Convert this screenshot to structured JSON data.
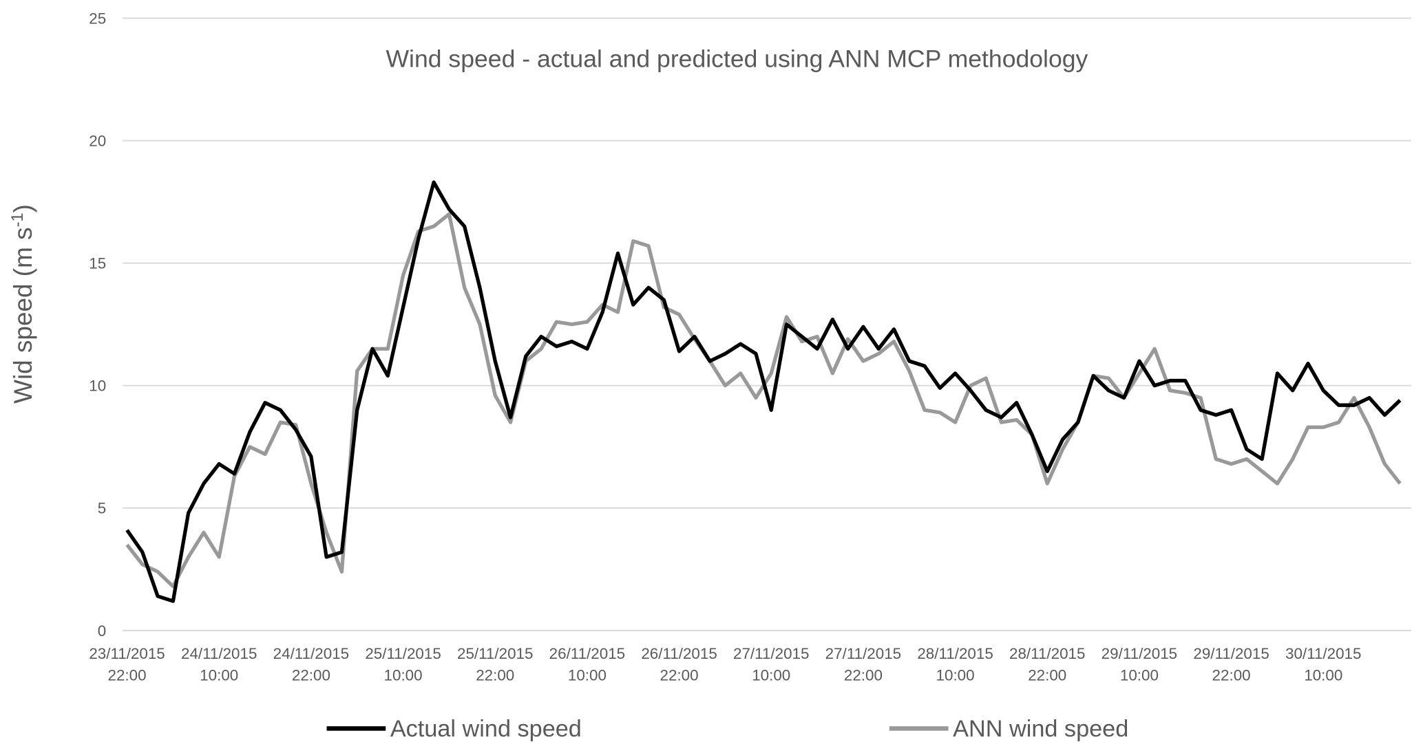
{
  "chart_data": {
    "type": "line",
    "title": "Wind speed - actual and predicted using ANN MCP methodology",
    "xlabel": "",
    "ylabel": {
      "main": "Wid speed (m s",
      "sup": "-1",
      "end": ")"
    },
    "ylim": [
      0,
      25
    ],
    "yticks": [
      "0",
      "5",
      "10",
      "15",
      "20",
      "25"
    ],
    "grid": true,
    "legend_position": "bottom",
    "xtick_labels": [
      {
        "date": "23/11/2015",
        "time": "22:00"
      },
      {
        "date": "24/11/2015",
        "time": "10:00"
      },
      {
        "date": "24/11/2015",
        "time": "22:00"
      },
      {
        "date": "25/11/2015",
        "time": "10:00"
      },
      {
        "date": "25/11/2015",
        "time": "22:00"
      },
      {
        "date": "26/11/2015",
        "time": "10:00"
      },
      {
        "date": "26/11/2015",
        "time": "22:00"
      },
      {
        "date": "27/11/2015",
        "time": "10:00"
      },
      {
        "date": "27/11/2015",
        "time": "22:00"
      },
      {
        "date": "28/11/2015",
        "time": "10:00"
      },
      {
        "date": "28/11/2015",
        "time": "22:00"
      },
      {
        "date": "29/11/2015",
        "time": "10:00"
      },
      {
        "date": "29/11/2015",
        "time": "22:00"
      },
      {
        "date": "30/11/2015",
        "time": "10:00"
      }
    ],
    "x": [
      "23/11/2015 22:00",
      "24/11/2015 00:00",
      "24/11/2015 02:00",
      "24/11/2015 04:00",
      "24/11/2015 06:00",
      "24/11/2015 08:00",
      "24/11/2015 10:00",
      "24/11/2015 12:00",
      "24/11/2015 14:00",
      "24/11/2015 16:00",
      "24/11/2015 18:00",
      "24/11/2015 20:00",
      "24/11/2015 22:00",
      "25/11/2015 00:00",
      "25/11/2015 02:00",
      "25/11/2015 04:00",
      "25/11/2015 06:00",
      "25/11/2015 08:00",
      "25/11/2015 10:00",
      "25/11/2015 12:00",
      "25/11/2015 14:00",
      "25/11/2015 16:00",
      "25/11/2015 18:00",
      "25/11/2015 20:00",
      "25/11/2015 22:00",
      "26/11/2015 00:00",
      "26/11/2015 02:00",
      "26/11/2015 04:00",
      "26/11/2015 06:00",
      "26/11/2015 08:00",
      "26/11/2015 10:00",
      "26/11/2015 12:00",
      "26/11/2015 14:00",
      "26/11/2015 16:00",
      "26/11/2015 18:00",
      "26/11/2015 20:00",
      "26/11/2015 22:00",
      "27/11/2015 00:00",
      "27/11/2015 02:00",
      "27/11/2015 04:00",
      "27/11/2015 06:00",
      "27/11/2015 08:00",
      "27/11/2015 10:00",
      "27/11/2015 12:00",
      "27/11/2015 14:00",
      "27/11/2015 16:00",
      "27/11/2015 18:00",
      "27/11/2015 20:00",
      "27/11/2015 22:00",
      "28/11/2015 00:00",
      "28/11/2015 02:00",
      "28/11/2015 04:00",
      "28/11/2015 06:00",
      "28/11/2015 08:00",
      "28/11/2015 10:00",
      "28/11/2015 12:00",
      "28/11/2015 14:00",
      "28/11/2015 16:00",
      "28/11/2015 18:00",
      "28/11/2015 20:00",
      "28/11/2015 22:00",
      "29/11/2015 00:00",
      "29/11/2015 02:00",
      "29/11/2015 04:00",
      "29/11/2015 06:00",
      "29/11/2015 08:00",
      "29/11/2015 10:00",
      "29/11/2015 12:00",
      "29/11/2015 14:00",
      "29/11/2015 16:00",
      "29/11/2015 18:00",
      "29/11/2015 20:00",
      "29/11/2015 22:00",
      "30/11/2015 00:00",
      "30/11/2015 02:00",
      "30/11/2015 04:00",
      "30/11/2015 06:00",
      "30/11/2015 08:00",
      "30/11/2015 10:00",
      "30/11/2015 12:00",
      "30/11/2015 14:00",
      "30/11/2015 16:00",
      "30/11/2015 18:00",
      "30/11/2015 20:00"
    ],
    "series": [
      {
        "name": "Actual wind speed",
        "color": "#000000",
        "values": [
          4.1,
          3.2,
          1.4,
          1.2,
          4.8,
          6.0,
          6.8,
          6.4,
          8.1,
          9.3,
          9.0,
          8.2,
          7.1,
          3.0,
          3.2,
          9.0,
          11.5,
          10.4,
          13.2,
          16.0,
          18.3,
          17.2,
          16.5,
          14.0,
          11.0,
          8.7,
          11.2,
          12.0,
          11.6,
          11.8,
          11.5,
          13.0,
          15.4,
          13.3,
          14.0,
          13.5,
          11.4,
          12.0,
          11.0,
          11.3,
          11.7,
          11.3,
          9.0,
          12.5,
          12.0,
          11.5,
          12.7,
          11.5,
          12.4,
          11.5,
          12.3,
          11.0,
          10.8,
          9.9,
          10.5,
          9.8,
          9.0,
          8.7,
          9.3,
          8.0,
          6.5,
          7.8,
          8.5,
          10.4,
          9.8,
          9.5,
          11.0,
          10.0,
          10.2,
          10.2,
          9.0,
          8.8,
          9.0,
          7.4,
          7.0,
          10.5,
          9.8,
          10.9,
          9.8,
          9.2,
          9.2,
          9.5,
          8.8,
          9.4
        ]
      },
      {
        "name": "ANN wind speed",
        "color": "#999999",
        "values": [
          3.5,
          2.7,
          2.4,
          1.8,
          3.0,
          4.0,
          3.0,
          6.3,
          7.5,
          7.2,
          8.5,
          8.4,
          6.0,
          4.0,
          2.4,
          10.6,
          11.5,
          11.5,
          14.5,
          16.3,
          16.5,
          17.0,
          14.0,
          12.5,
          9.6,
          8.5,
          11.0,
          11.5,
          12.6,
          12.5,
          12.6,
          13.3,
          13.0,
          15.9,
          15.7,
          13.2,
          12.9,
          11.9,
          11.0,
          10.0,
          10.5,
          9.5,
          10.5,
          12.8,
          11.8,
          12.0,
          10.5,
          11.9,
          11.0,
          11.3,
          11.8,
          10.6,
          9.0,
          8.9,
          8.5,
          10.0,
          10.3,
          8.5,
          8.6,
          8.0,
          6.0,
          7.4,
          8.5,
          10.4,
          10.3,
          9.5,
          10.5,
          11.5,
          9.8,
          9.7,
          9.5,
          7.0,
          6.8,
          7.0,
          6.5,
          6.0,
          7.0,
          8.3,
          8.3,
          8.5,
          9.5,
          8.3,
          6.8,
          6.0
        ]
      }
    ]
  }
}
